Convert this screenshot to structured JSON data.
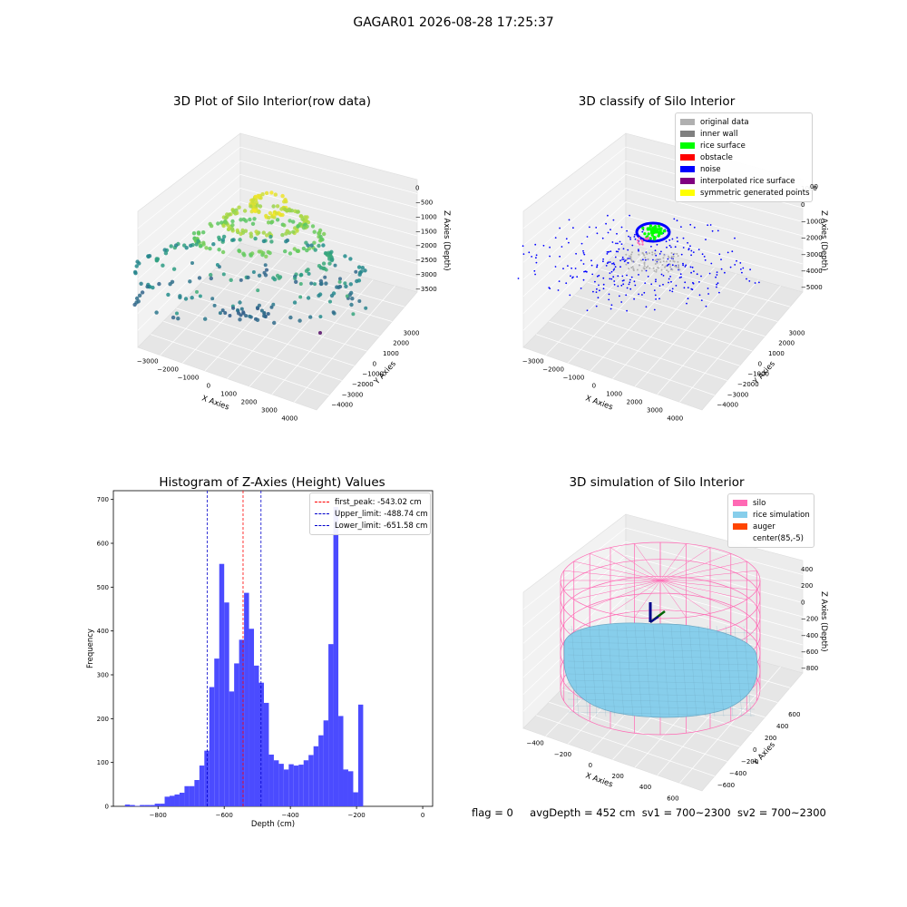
{
  "figure": {
    "suptitle": "GAGAR01 2026-08-28 17:25:37",
    "status": {
      "flag": "flag = 0",
      "avg_depth": "avgDepth = 452 cm",
      "sv1": "sv1 = 700~2300",
      "sv2": "sv2 = 700~2300"
    }
  },
  "colors": {
    "original_data": "#b0b0b0",
    "inner_wall": "#808080",
    "rice_surface": "#00ff00",
    "obstacle": "#ff0000",
    "noise": "#0000ff",
    "interpolated_rice_surface": "#800080",
    "symmetric_generated_points": "#ffff00",
    "histogram_bar": "#4b4bff",
    "first_peak_line": "#ff0000",
    "limit_line": "#0000cc",
    "silo": "#ff69b4",
    "rice_simulation": "#87ceeb",
    "auger": "#ff4500"
  },
  "chart_data": [
    {
      "type": "scatter",
      "subtype": "3d",
      "title": "3D Plot of Silo Interior(row data)",
      "xlabel": "X Axies",
      "ylabel": "Y Axies",
      "zlabel": "Z Axies (Depth)",
      "x_ticks": [
        "−3000",
        "−2000",
        "−1000",
        "0",
        "1000",
        "2000",
        "3000",
        "4000"
      ],
      "y_ticks": [
        "3000",
        "2000",
        "1000",
        "0",
        "−1000",
        "−2000",
        "−3000",
        "−4000"
      ],
      "z_ticks": [
        "0",
        "−500",
        "−1000",
        "−1500",
        "−2000",
        "−2500",
        "−3000",
        "−3500"
      ],
      "xlim": [
        -3300,
        4300
      ],
      "ylim": [
        -4300,
        3300
      ],
      "zlim": [
        -3700,
        0
      ],
      "colormap": "viridis (colored by depth)"
    },
    {
      "type": "scatter",
      "subtype": "3d",
      "title": "3D classify of Silo Interior",
      "xlabel": "X Axies",
      "ylabel": "Y Axies",
      "zlabel": "Z Axies (Depth)",
      "x_ticks": [
        "−3000",
        "−2000",
        "−1000",
        "0",
        "1000",
        "2000",
        "3000",
        "4000"
      ],
      "y_ticks": [
        "3000",
        "2000",
        "1000",
        "0",
        "−1000",
        "−2000",
        "−3000",
        "−4000"
      ],
      "z_ticks": [
        "1000",
        "0",
        "−1000",
        "−2000",
        "−3000",
        "−4000",
        "−5000"
      ],
      "legend": [
        {
          "label": "original data",
          "color": "#b0b0b0"
        },
        {
          "label": "inner wall",
          "color": "#808080"
        },
        {
          "label": "rice surface",
          "color": "#00ff00"
        },
        {
          "label": "obstacle",
          "color": "#ff0000"
        },
        {
          "label": "noise",
          "color": "#0000ff"
        },
        {
          "label": "interpolated rice surface",
          "color": "#800080"
        },
        {
          "label": "symmetric generated points",
          "color": "#ffff00"
        }
      ],
      "z_top_tick_partial": "00"
    },
    {
      "type": "bar",
      "subtype": "histogram",
      "title": "Histogram of Z-Axies (Height) Values",
      "xlabel": "Depth (cm)",
      "ylabel": "Frequency",
      "xlim": [
        -935,
        30
      ],
      "ylim": [
        0,
        720
      ],
      "x_ticks": [
        -800,
        -600,
        -400,
        -200,
        0
      ],
      "y_ticks": [
        0,
        100,
        200,
        300,
        400,
        500,
        600,
        700
      ],
      "x_tick_labels": [
        "−800",
        "−600",
        "−400",
        "−200",
        "0"
      ],
      "bin_start": -900,
      "bin_width": 15,
      "values": [
        4,
        3,
        1,
        3,
        3,
        3,
        6,
        6,
        22,
        24,
        27,
        31,
        46,
        46,
        60,
        93,
        127,
        272,
        337,
        553,
        465,
        262,
        326,
        380,
        487,
        405,
        321,
        282,
        236,
        118,
        105,
        97,
        84,
        96,
        93,
        95,
        105,
        117,
        137,
        162,
        196,
        370,
        683,
        206,
        84,
        80,
        32,
        232
      ],
      "lines": [
        {
          "label": "first_peak: -543.02 cm",
          "x": -543.02,
          "color": "#ff0000"
        },
        {
          "label": "Upper_limit: -488.74 cm",
          "x": -488.74,
          "color": "#0000cc"
        },
        {
          "label": "Lower_limit: -651.58 cm",
          "x": -651.58,
          "color": "#0000cc"
        }
      ]
    },
    {
      "type": "area",
      "subtype": "3d surface",
      "title": "3D simulation of Silo Interior",
      "xlabel": "X Axies",
      "ylabel": "Y Axies",
      "zlabel": "Z Axies (Depth)",
      "x_ticks": [
        "−400",
        "−200",
        "0",
        "200",
        "400",
        "600"
      ],
      "y_ticks": [
        "600",
        "400",
        "200",
        "0",
        "−200",
        "−400",
        "−600"
      ],
      "z_ticks": [
        "400",
        "200",
        "0",
        "−200",
        "−400",
        "−600",
        "−800"
      ],
      "legend": [
        {
          "label": "silo",
          "color": "#ff69b4"
        },
        {
          "label": "rice simulation",
          "color": "#87ceeb"
        },
        {
          "label": "auger",
          "color": "#ff4500"
        },
        {
          "label": "center(85,-5)",
          "color": ""
        }
      ]
    }
  ]
}
